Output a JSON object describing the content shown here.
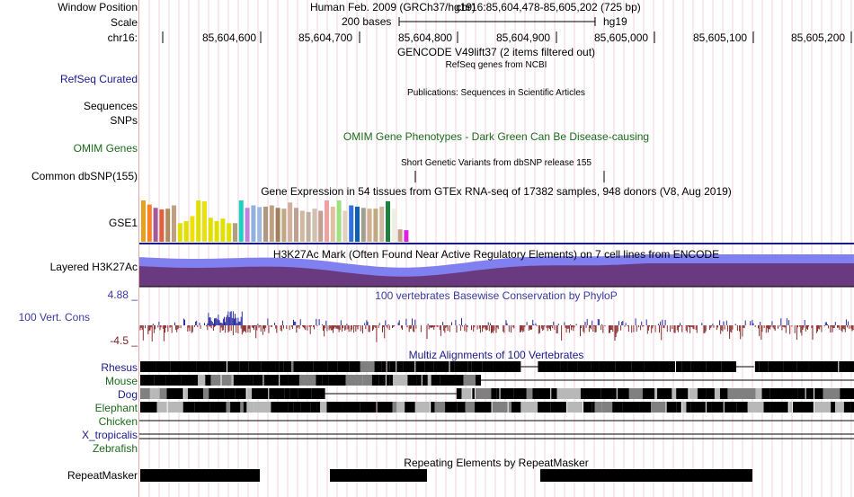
{
  "labels": {
    "window_position": "Window Position",
    "scale": "Scale",
    "chromosome": "chr16:",
    "refseq_curated": "RefSeq Curated",
    "sequences": "Sequences",
    "snps": "SNPs",
    "omim_genes": "OMIM Genes",
    "common_dbsnp": "Common dbSNP(155)",
    "gse1": "GSE1",
    "layered_h3k27ac": "Layered H3K27Ac",
    "vert_cons_max": "4.88 _",
    "vert_cons": "100 Vert. Cons",
    "vert_cons_min": "-4.5 _",
    "rhesus": "Rhesus",
    "mouse": "Mouse",
    "dog": "Dog",
    "elephant": "Elephant",
    "chicken": "Chicken",
    "x_tropicalis": "X_tropicalis",
    "zebrafish": "Zebrafish",
    "repeatmasker": "RepeatMasker"
  },
  "header": {
    "assembly": "Human Feb. 2009 (GRCh37/hg19)",
    "position": "chr16:85,604,478-85,605,202 (725 bp)",
    "scale_bar": "200 bases",
    "db": "hg19",
    "ticks": [
      "85,604,600",
      "85,604,700",
      "85,604,800",
      "85,604,900",
      "85,605,000",
      "85,605,100",
      "85,605,200"
    ]
  },
  "tracks": {
    "gencode": "GENCODE V49lift37 (2 items filtered out)",
    "refseq": "RefSeq genes from NCBI",
    "publications": "Publications: Sequences in Scientific Articles",
    "omim": "OMIM Gene Phenotypes - Dark Green Can Be Disease-causing",
    "dbsnp": "Short Genetic Variants from dbSNP release 155",
    "gtex": "Gene Expression in 54 tissues from GTEx RNA-seq of 17382 samples, 948 donors (V8, Aug 2019)",
    "h3k27ac": "H3K27Ac Mark (Often Found Near Active Regulatory Elements) on 7 cell lines from ENCODE",
    "phylop": "100 vertebrates Basewise Conservation by PhyloP",
    "multiz": "Multiz Alignments of 100 Vertebrates",
    "repeatmasker": "Repeating Elements by RepeatMasker"
  },
  "colors": {
    "navy": "#1a1a8a",
    "green": "#1a6b1a",
    "h3k27ac_light": "#8080f0",
    "h3k27ac_dark": "#6a3a80",
    "phylop_pos": "#2a2aa0",
    "phylop_neg": "#8a2a2a",
    "grid": "#e8c8d8"
  },
  "gtex_bars": [
    {
      "color": "#e8a020",
      "level": 1.0
    },
    {
      "color": "#ff8020",
      "level": 0.9
    },
    {
      "color": "#a05a9a",
      "level": 0.82
    },
    {
      "color": "#e06040",
      "level": 0.78
    },
    {
      "color": "#b08a60",
      "level": 0.8
    },
    {
      "color": "#c0a080",
      "level": 0.88
    },
    {
      "color": "#e0e000",
      "level": 0.45
    },
    {
      "color": "#e0e000",
      "level": 0.5
    },
    {
      "color": "#f0e000",
      "level": 0.62
    },
    {
      "color": "#e0e000",
      "level": 1.0
    },
    {
      "color": "#e8e010",
      "level": 0.98
    },
    {
      "color": "#e0e000",
      "level": 0.58
    },
    {
      "color": "#e0e000",
      "level": 0.5
    },
    {
      "color": "#e0e000",
      "level": 0.56
    },
    {
      "color": "#e0e000",
      "level": 0.45
    },
    {
      "color": "#b0a080",
      "level": 0.45
    },
    {
      "color": "#20d0c0",
      "level": 1.0
    },
    {
      "color": "#c080e0",
      "level": 0.82
    },
    {
      "color": "#90b0e0",
      "level": 0.88
    },
    {
      "color": "#a0b8e0",
      "level": 0.84
    },
    {
      "color": "#b09880",
      "level": 0.85
    },
    {
      "color": "#c0a080",
      "level": 0.88
    },
    {
      "color": "#a08060",
      "level": 0.82
    },
    {
      "color": "#c0a880",
      "level": 0.8
    },
    {
      "color": "#d0b0a0",
      "level": 0.95
    },
    {
      "color": "#c0a090",
      "level": 0.82
    },
    {
      "color": "#d0b8a0",
      "level": 0.75
    },
    {
      "color": "#c0b0a0",
      "level": 0.72
    },
    {
      "color": "#d0c0b0",
      "level": 0.8
    },
    {
      "color": "#c0a090",
      "level": 0.75
    },
    {
      "color": "#f0a0a0",
      "level": 1.0
    },
    {
      "color": "#e0c0a0",
      "level": 0.85
    },
    {
      "color": "#a0e080",
      "level": 1.0
    },
    {
      "color": "#e0d0c0",
      "level": 0.75
    },
    {
      "color": "#3070e0",
      "level": 0.88
    },
    {
      "color": "#1060b0",
      "level": 0.85
    },
    {
      "color": "#a0a090",
      "level": 0.82
    },
    {
      "color": "#d0b090",
      "level": 0.8
    },
    {
      "color": "#c0a880",
      "level": 0.8
    },
    {
      "color": "#d0b8a0",
      "level": 0.85
    },
    {
      "color": "#208040",
      "level": 0.98
    },
    {
      "color": "#f0f0e0",
      "level": 0.8
    },
    {
      "color": "#c0a080",
      "level": 0.3
    },
    {
      "color": "#e020e0",
      "level": 0.28
    }
  ]
}
